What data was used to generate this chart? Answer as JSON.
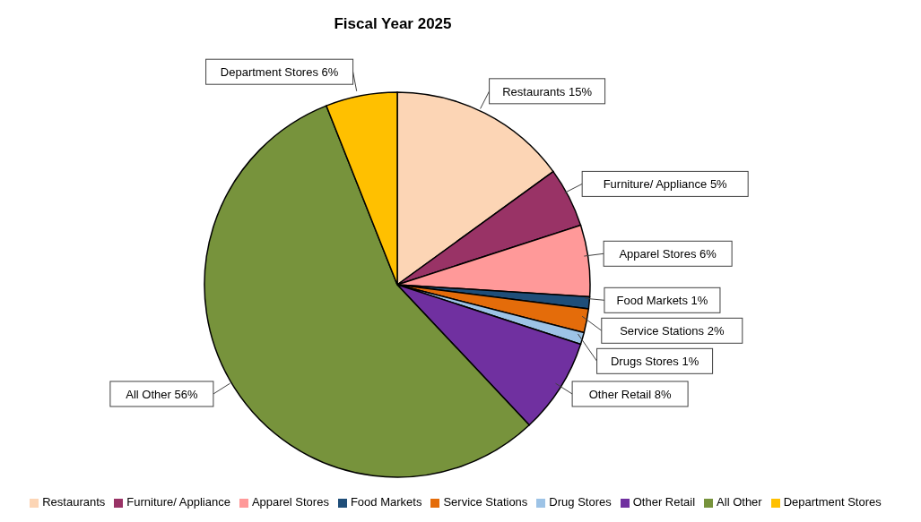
{
  "chart_data": {
    "type": "pie",
    "title": "Fiscal Year 2025",
    "categories": [
      "Restaurants",
      "Furniture/ Appliance",
      "Apparel Stores",
      "Food Markets",
      "Service Stations",
      "Drug Stores",
      "Other Retail",
      "All Other",
      "Department Stores"
    ],
    "values": [
      15,
      5,
      6,
      1,
      2,
      1,
      8,
      56,
      6
    ],
    "colors": [
      "#fcd5b5",
      "#993366",
      "#ff9999",
      "#1f4e79",
      "#e46c0a",
      "#9dc3e6",
      "#7030a0",
      "#77933c",
      "#ffc000"
    ],
    "value_labels": [
      "Restaurants 15%",
      "Furniture/ Appliance 5%",
      "Apparel Stores 6%",
      "Food Markets 1%",
      "Service Stations 2%",
      "Drugs Stores 1%",
      "Other Retail 8%",
      "All Other 56%",
      "Department Stores 6%"
    ],
    "legend": "bottom"
  }
}
